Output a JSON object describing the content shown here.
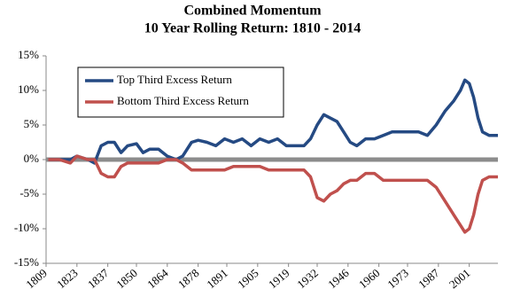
{
  "chart_data": {
    "type": "line",
    "title": "Combined Momentum",
    "subtitle": "10 Year Rolling Return: 1810 - 2014",
    "x": [
      1810,
      1815,
      1820,
      1823,
      1828,
      1831,
      1834,
      1837,
      1840,
      1843,
      1846,
      1850,
      1853,
      1856,
      1860,
      1864,
      1868,
      1871,
      1875,
      1878,
      1882,
      1886,
      1890,
      1894,
      1898,
      1902,
      1906,
      1910,
      1914,
      1918,
      1922,
      1926,
      1929,
      1932,
      1935,
      1938,
      1941,
      1944,
      1947,
      1950,
      1954,
      1958,
      1962,
      1966,
      1970,
      1974,
      1978,
      1982,
      1986,
      1990,
      1994,
      1997,
      1999,
      2001,
      2003,
      2005,
      2007,
      2010,
      2014
    ],
    "series": [
      {
        "name": "Top Third Excess Return",
        "color": "#254a83",
        "values": [
          0,
          0,
          0,
          0.5,
          0,
          -0.5,
          2,
          2.5,
          2.5,
          1,
          2,
          2.3,
          1,
          1.5,
          1.5,
          0.5,
          0,
          0.5,
          2.5,
          2.8,
          2.5,
          2,
          3,
          2.5,
          3,
          2,
          3,
          2.5,
          3,
          2,
          2,
          2,
          3,
          5,
          6.5,
          6,
          5.5,
          4,
          2.5,
          2,
          3,
          3,
          3.5,
          4,
          4,
          4,
          4,
          3.5,
          5,
          7,
          8.5,
          10,
          11.5,
          11,
          9,
          6,
          4,
          3.5,
          3.5
        ]
      },
      {
        "name": "Bottom Third Excess Return",
        "color": "#c0504d",
        "values": [
          0,
          0,
          -0.5,
          0.5,
          0,
          0,
          -2,
          -2.5,
          -2.5,
          -1,
          -0.5,
          -0.5,
          -0.5,
          -0.5,
          -0.5,
          0,
          0,
          -0.5,
          -1.5,
          -1.5,
          -1.5,
          -1.5,
          -1.5,
          -1,
          -1,
          -1,
          -1,
          -1.5,
          -1.5,
          -1.5,
          -1.5,
          -1.5,
          -2.5,
          -5.5,
          -6,
          -5,
          -4.5,
          -3.5,
          -3,
          -3,
          -2,
          -2,
          -3,
          -3,
          -3,
          -3,
          -3,
          -3,
          -4,
          -6,
          -8,
          -9.5,
          -10.5,
          -10,
          -8,
          -5,
          -3,
          -2.5,
          -2.5
        ]
      }
    ],
    "xlim": [
      1809,
      2014
    ],
    "xticks": [
      1809,
      1823,
      1837,
      1850,
      1864,
      1878,
      1891,
      1905,
      1919,
      1932,
      1946,
      1960,
      1973,
      1987,
      2001
    ],
    "ylim": [
      -15,
      15
    ],
    "yticks": [
      {
        "value": 15,
        "label": "15%"
      },
      {
        "value": 10,
        "label": "10%"
      },
      {
        "value": 5,
        "label": "5%"
      },
      {
        "value": 0,
        "label": "0%"
      },
      {
        "value": -5,
        "label": "-5%"
      },
      {
        "value": -10,
        "label": "-10%"
      },
      {
        "value": -15,
        "label": "-15%"
      }
    ],
    "legend": "upper left"
  }
}
